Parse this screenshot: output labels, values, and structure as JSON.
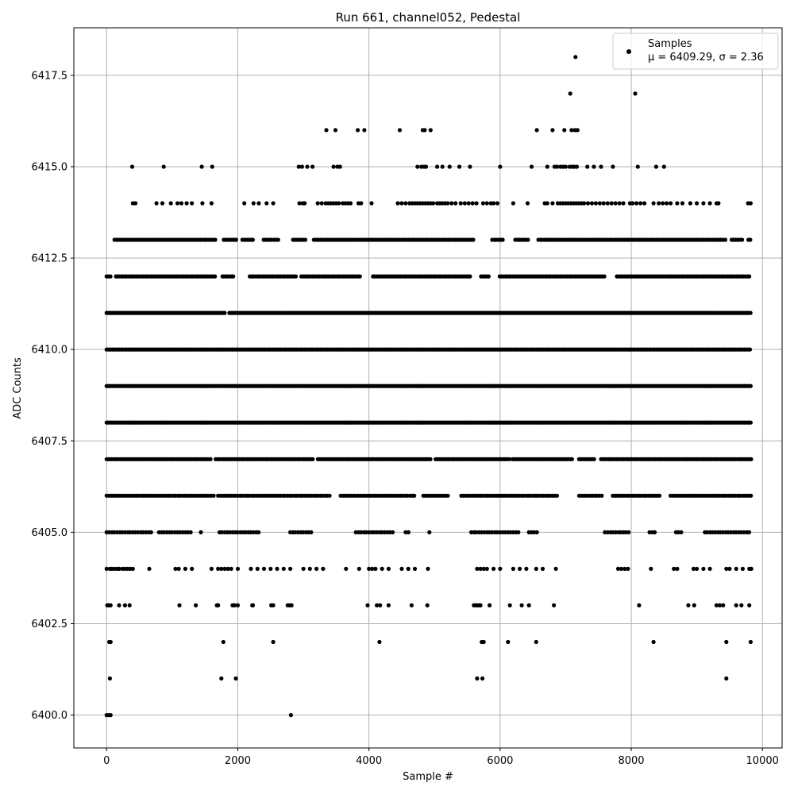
{
  "chart_data": {
    "type": "scatter",
    "title": "Run 661, channel052, Pedestal",
    "xlabel": "Sample #",
    "ylabel": "ADC Counts",
    "xlim": [
      -500,
      10300
    ],
    "ylim": [
      6399.1,
      6418.8
    ],
    "xticks": [
      0,
      2000,
      4000,
      6000,
      8000,
      10000
    ],
    "xtick_labels": [
      "0",
      "2000",
      "4000",
      "6000",
      "8000",
      "10000"
    ],
    "yticks": [
      6400.0,
      6402.5,
      6405.0,
      6407.5,
      6410.0,
      6412.5,
      6415.0,
      6417.5
    ],
    "ytick_labels": [
      "6400.0",
      "6402.5",
      "6405.0",
      "6407.5",
      "6410.0",
      "6412.5",
      "6415.0",
      "6417.5"
    ],
    "grid": true,
    "legend_position": "top-right",
    "marker_color": "#000000",
    "series": [
      {
        "name": "Samples",
        "legend_stats": "μ = 6409.29, σ = 2.36",
        "bands": [
          {
            "y": 6400,
            "x": [
              0,
              30,
              60,
              2810
            ]
          },
          {
            "y": 6401,
            "x": [
              50,
              1750,
              1970,
              5650,
              5730,
              9450
            ]
          },
          {
            "y": 6402,
            "x": [
              40,
              60,
              1780,
              2540,
              4160,
              5720,
              5750,
              6120,
              6550,
              8340,
              9450,
              9820
            ]
          },
          {
            "y": 6403,
            "x": [
              10,
              30,
              60,
              190,
              280,
              350,
              1110,
              1360,
              1680,
              1700,
              1920,
              1950,
              2000,
              2220,
              2230,
              2510,
              2540,
              2760,
              2790,
              2820,
              3980,
              4120,
              4170,
              4300,
              4650,
              4890,
              5600,
              5630,
              5650,
              5680,
              5700,
              5840,
              6150,
              6330,
              6440,
              6820,
              8120,
              8870,
              8960,
              9300,
              9350,
              9400,
              9600,
              9680,
              9800
            ]
          },
          {
            "y": 6404,
            "x": [
              0,
              50,
              80,
              120,
              160,
              190,
              240,
              280,
              320,
              360,
              400,
              650,
              1050,
              1100,
              1200,
              1300,
              1600,
              1700,
              1750,
              1800,
              1850,
              1900,
              2000,
              2200,
              2300,
              2400,
              2500,
              2600,
              2700,
              2800,
              3000,
              3100,
              3200,
              3300,
              3650,
              3850,
              4000,
              4050,
              4100,
              4200,
              4300,
              4500,
              4600,
              4700,
              4900,
              5650,
              5700,
              5750,
              5800,
              5900,
              6000,
              6200,
              6300,
              6400,
              6550,
              6650,
              6850,
              7800,
              7850,
              7900,
              7950,
              8300,
              8650,
              8700,
              8950,
              9000,
              9100,
              9200,
              9450,
              9500,
              9600,
              9700,
              9800,
              9830
            ]
          }
        ],
        "dense_rows": [
          {
            "y": 6405,
            "x_start": 0,
            "x_end": 9830,
            "step": 40,
            "gaps": [
              [
                700,
                760
              ],
              [
                1300,
                1420
              ],
              [
                1460,
                1680
              ],
              [
                2350,
                2760
              ],
              [
                3160,
                3780
              ],
              [
                4400,
                4520
              ],
              [
                4640,
                4880
              ],
              [
                4960,
                5160
              ],
              [
                5200,
                5550
              ],
              [
                6320,
                6400
              ],
              [
                6580,
                7580
              ],
              [
                8000,
                8260
              ],
              [
                8400,
                8640
              ],
              [
                8780,
                9100
              ]
            ]
          },
          {
            "y": 6406,
            "x_start": 0,
            "x_end": 9830,
            "step": 34,
            "gaps": [
              [
                1640,
                1690
              ],
              [
                3420,
                3560
              ],
              [
                4720,
                4820
              ],
              [
                5220,
                5380
              ],
              [
                6880,
                7200
              ],
              [
                7560,
                7700
              ],
              [
                8440,
                8600
              ]
            ]
          },
          {
            "y": 6407,
            "x_start": 0,
            "x_end": 9830,
            "step": 26,
            "gaps": [
              [
                1600,
                1660
              ],
              [
                3160,
                3200
              ],
              [
                4960,
                5000
              ],
              [
                6140,
                6180
              ],
              [
                7120,
                7200
              ],
              [
                7460,
                7520
              ]
            ]
          },
          {
            "y": 6408,
            "x_start": 0,
            "x_end": 9830,
            "step": 20,
            "gaps": []
          },
          {
            "y": 6409,
            "x_start": 0,
            "x_end": 9830,
            "step": 20,
            "gaps": []
          },
          {
            "y": 6410,
            "x_start": 0,
            "x_end": 9830,
            "step": 22,
            "gaps": []
          },
          {
            "y": 6411,
            "x_start": 0,
            "x_end": 9830,
            "step": 24,
            "gaps": [
              [
                1820,
                1860
              ]
            ]
          },
          {
            "y": 6412,
            "x_start": 0,
            "x_end": 9830,
            "step": 28,
            "gaps": [
              [
                60,
                120
              ],
              [
                1660,
                1760
              ],
              [
                1960,
                2160
              ],
              [
                2900,
                2960
              ],
              [
                3880,
                4040
              ],
              [
                5560,
                5700
              ],
              [
                5840,
                5980
              ],
              [
                7600,
                7760
              ],
              [
                9820,
                9830
              ]
            ]
          },
          {
            "y": 6413,
            "x_start": 120,
            "x_end": 9830,
            "step": 32,
            "gaps": [
              [
                1660,
                1760
              ],
              [
                1980,
                2060
              ],
              [
                2240,
                2360
              ],
              [
                2640,
                2820
              ],
              [
                3040,
                3140
              ],
              [
                5600,
                5860
              ],
              [
                6060,
                6200
              ],
              [
                6440,
                6560
              ],
              [
                9440,
                9520
              ],
              [
                9720,
                9780
              ]
            ]
          }
        ],
        "sparse_rows": [
          {
            "y": 6414,
            "x": [
              400,
              440,
              760,
              850,
              980,
              1080,
              1140,
              1220,
              1300,
              1460,
              1600,
              2100,
              2240,
              2320,
              2440,
              2540,
              2940,
              2990,
              3020,
              3220,
              3280,
              3340,
              3380,
              3420,
              3460,
              3500,
              3540,
              3600,
              3640,
              3680,
              3720,
              3840,
              3880,
              4040,
              4440,
              4500,
              4560,
              4620,
              4660,
              4700,
              4740,
              4780,
              4820,
              4860,
              4900,
              4940,
              4980,
              5040,
              5080,
              5120,
              5160,
              5200,
              5260,
              5320,
              5400,
              5460,
              5520,
              5580,
              5640,
              5740,
              5800,
              5860,
              5900,
              5960,
              6200,
              6420,
              6680,
              6720,
              6800,
              6880,
              6920,
              6960,
              7000,
              7040,
              7080,
              7120,
              7160,
              7200,
              7240,
              7280,
              7340,
              7400,
              7460,
              7520,
              7580,
              7640,
              7700,
              7760,
              7820,
              7880,
              7980,
              8020,
              8080,
              8140,
              8200,
              8340,
              8420,
              8480,
              8540,
              8600,
              8700,
              8780,
              8900,
              9000,
              9100,
              9200,
              9300,
              9330,
              9780,
              9820
            ]
          },
          {
            "y": 6415,
            "x": [
              390,
              870,
              1450,
              1610,
              2930,
              2980,
              3060,
              3140,
              3460,
              3520,
              3560,
              4740,
              4800,
              4840,
              4870,
              5040,
              5120,
              5230,
              5380,
              5540,
              6000,
              6480,
              6720,
              6830,
              6870,
              6920,
              6960,
              7000,
              7060,
              7100,
              7130,
              7170,
              7330,
              7430,
              7540,
              7720,
              8100,
              8380,
              8500
            ]
          },
          {
            "y": 6416,
            "x": [
              3350,
              3490,
              3830,
              3930,
              4470,
              4820,
              4850,
              4940,
              6560,
              6800,
              6980,
              7090,
              7140,
              7180
            ]
          },
          {
            "y": 6417,
            "x": [
              7070,
              8060
            ]
          },
          {
            "y": 6418,
            "x": [
              7150
            ]
          }
        ]
      }
    ]
  }
}
